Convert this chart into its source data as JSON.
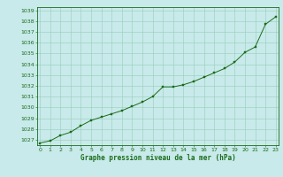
{
  "x": [
    0,
    1,
    2,
    3,
    4,
    5,
    6,
    7,
    8,
    9,
    10,
    11,
    12,
    13,
    14,
    15,
    16,
    17,
    18,
    19,
    20,
    21,
    22,
    23
  ],
  "y": [
    1026.7,
    1026.9,
    1027.4,
    1027.7,
    1028.3,
    1028.8,
    1029.1,
    1029.4,
    1029.7,
    1030.1,
    1030.5,
    1031.0,
    1031.9,
    1031.9,
    1032.1,
    1032.4,
    1032.8,
    1033.2,
    1033.6,
    1034.2,
    1035.1,
    1035.6,
    1037.7,
    1038.4
  ],
  "ylim_min": 1026.5,
  "ylim_max": 1039.3,
  "xlim_min": -0.3,
  "xlim_max": 23.3,
  "yticks": [
    1027,
    1028,
    1029,
    1030,
    1031,
    1032,
    1033,
    1034,
    1035,
    1036,
    1037,
    1038,
    1039
  ],
  "xticks": [
    0,
    1,
    2,
    3,
    4,
    5,
    6,
    7,
    8,
    9,
    10,
    11,
    12,
    13,
    14,
    15,
    16,
    17,
    18,
    19,
    20,
    21,
    22,
    23
  ],
  "line_color": "#1a6b1a",
  "marker_color": "#1a6b1a",
  "bg_color": "#c8eaea",
  "grid_color": "#99ccbb",
  "xlabel": "Graphe pression niveau de la mer (hPa)",
  "xlabel_color": "#1a6b1a",
  "tick_color": "#1a6b1a",
  "border_color": "#1a6b1a",
  "tick_fontsize": 4.5,
  "xlabel_fontsize": 5.5
}
